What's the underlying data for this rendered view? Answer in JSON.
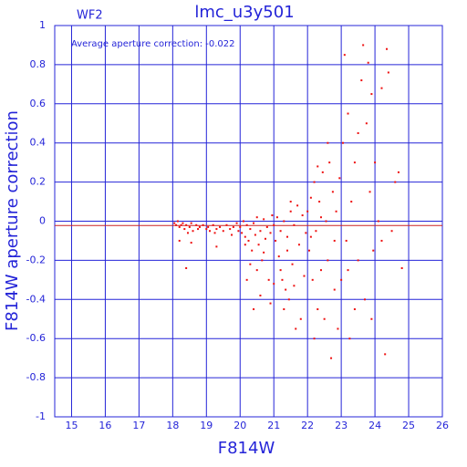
{
  "chart_data": {
    "type": "scatter",
    "title": "lmc_u3y501",
    "label": "WF2",
    "annotation": "Average aperture correction: -0.022",
    "x_label": "F814W",
    "y_label": "F814W aperture correction",
    "color": "#ee1111",
    "axis_color": "#2424d8",
    "grid": true,
    "average": -0.022,
    "average_color": "#cc2222",
    "xlim": [
      14.5,
      26
    ],
    "xticks": [
      15,
      16,
      17,
      18,
      19,
      20,
      21,
      22,
      23,
      24,
      25,
      26
    ],
    "ylim": [
      -1,
      1
    ],
    "yticks": [
      -1,
      -0.8,
      -0.6,
      -0.4,
      -0.2,
      0,
      0.2,
      0.4,
      0.6,
      0.8,
      1
    ],
    "x": [
      18.05,
      18.1,
      18.15,
      18.2,
      18.25,
      18.3,
      18.35,
      18.4,
      18.45,
      18.5,
      18.55,
      18.6,
      18.7,
      18.75,
      18.8,
      18.9,
      19.0,
      19.05,
      19.1,
      19.2,
      19.25,
      19.3,
      19.4,
      19.5,
      19.6,
      19.7,
      19.75,
      19.8,
      19.9,
      19.95,
      18.4,
      18.2,
      18.55,
      19.3,
      20.0,
      20.05,
      20.1,
      20.15,
      20.2,
      20.25,
      20.3,
      20.35,
      20.4,
      20.45,
      20.5,
      20.55,
      20.6,
      20.65,
      20.7,
      20.75,
      20.8,
      20.85,
      20.9,
      20.95,
      20.2,
      20.4,
      20.6,
      20.5,
      20.9,
      20.3,
      20.7,
      20.15,
      21.0,
      21.05,
      21.1,
      21.15,
      21.2,
      21.25,
      21.3,
      21.35,
      21.4,
      21.45,
      21.5,
      21.55,
      21.6,
      21.65,
      21.7,
      21.75,
      21.8,
      21.85,
      21.9,
      21.95,
      21.2,
      21.4,
      21.6,
      21.3,
      21.0,
      21.5,
      22.0,
      22.05,
      22.1,
      22.15,
      22.2,
      22.25,
      22.3,
      22.35,
      22.4,
      22.45,
      22.5,
      22.55,
      22.6,
      22.65,
      22.7,
      22.75,
      22.8,
      22.85,
      22.9,
      22.95,
      22.3,
      22.6,
      22.2,
      22.8,
      22.4,
      22.1,
      23.0,
      23.05,
      23.1,
      23.15,
      23.2,
      23.25,
      23.3,
      23.4,
      23.5,
      23.6,
      23.65,
      23.7,
      23.75,
      23.8,
      23.85,
      23.9,
      23.95,
      24.0,
      24.1,
      24.2,
      24.3,
      24.35,
      24.4,
      24.5,
      24.6,
      24.7,
      24.8,
      23.2,
      23.5,
      23.9,
      24.2,
      23.4
    ],
    "values": [
      -0.01,
      -0.02,
      0.0,
      -0.03,
      -0.02,
      -0.01,
      -0.04,
      -0.02,
      -0.06,
      -0.03,
      -0.01,
      -0.05,
      -0.02,
      -0.04,
      -0.03,
      -0.02,
      -0.04,
      -0.03,
      -0.05,
      -0.02,
      -0.06,
      -0.04,
      -0.03,
      -0.05,
      -0.02,
      -0.04,
      -0.07,
      -0.03,
      -0.01,
      -0.05,
      -0.24,
      -0.1,
      -0.11,
      -0.13,
      -0.03,
      -0.06,
      0.0,
      -0.08,
      -0.02,
      -0.1,
      -0.04,
      -0.15,
      -0.01,
      -0.07,
      0.02,
      -0.12,
      -0.05,
      -0.2,
      0.01,
      -0.09,
      -0.03,
      -0.3,
      -0.06,
      0.03,
      -0.3,
      -0.45,
      -0.38,
      -0.25,
      -0.42,
      -0.22,
      -0.16,
      -0.12,
      -0.02,
      -0.1,
      0.02,
      -0.18,
      -0.05,
      -0.3,
      0.0,
      -0.35,
      -0.08,
      -0.4,
      0.05,
      -0.22,
      -0.02,
      -0.55,
      0.08,
      -0.12,
      -0.5,
      0.03,
      -0.28,
      -0.06,
      -0.25,
      -0.15,
      -0.33,
      -0.45,
      -0.32,
      0.1,
      0.05,
      -0.15,
      0.12,
      -0.3,
      0.2,
      -0.05,
      -0.45,
      0.1,
      -0.25,
      0.25,
      -0.5,
      0.0,
      -0.2,
      0.3,
      -0.7,
      0.15,
      -0.35,
      0.05,
      -0.55,
      0.22,
      0.28,
      0.4,
      -0.6,
      -0.1,
      0.02,
      -0.08,
      -0.3,
      0.4,
      0.85,
      -0.1,
      0.55,
      -0.6,
      0.1,
      0.3,
      -0.2,
      0.72,
      0.9,
      -0.4,
      0.5,
      0.81,
      0.15,
      0.65,
      -0.15,
      0.3,
      0.0,
      0.68,
      -0.68,
      0.88,
      0.76,
      -0.05,
      0.2,
      0.25,
      -0.24,
      -0.25,
      0.45,
      -0.5,
      -0.1,
      -0.45
    ]
  }
}
